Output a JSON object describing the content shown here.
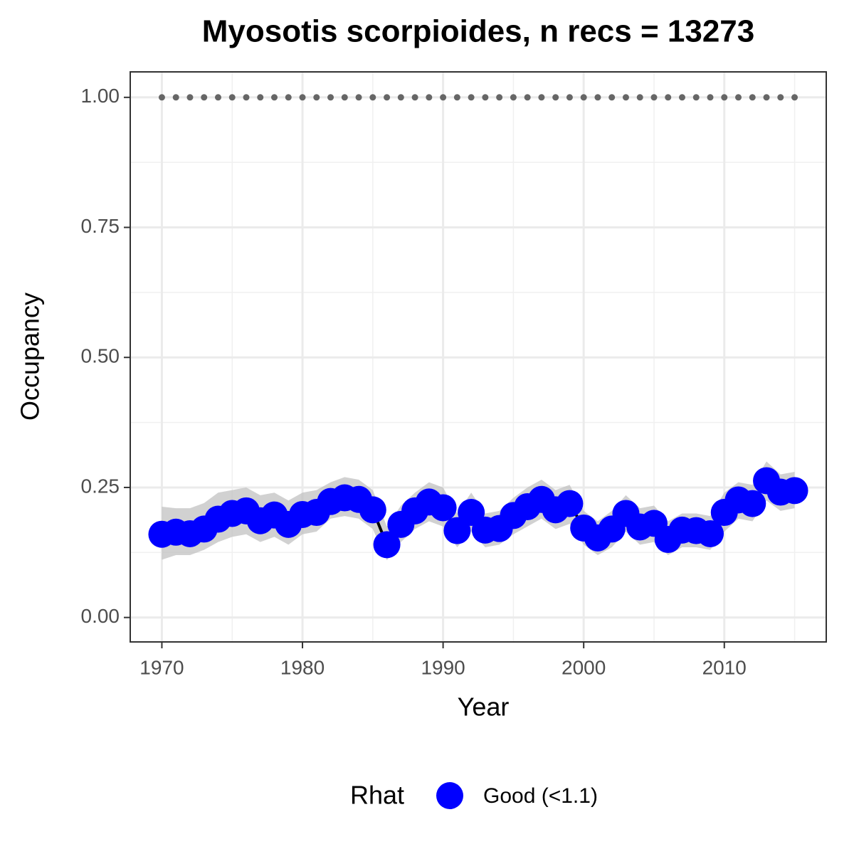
{
  "chart_data": {
    "type": "line",
    "title": "Myosotis scorpioides, n recs = 13273",
    "x_label": "Year",
    "y_label": "Occupancy",
    "x": [
      1970,
      1971,
      1972,
      1973,
      1974,
      1975,
      1976,
      1977,
      1978,
      1979,
      1980,
      1981,
      1982,
      1983,
      1984,
      1985,
      1986,
      1987,
      1988,
      1989,
      1990,
      1991,
      1992,
      1993,
      1994,
      1995,
      1996,
      1997,
      1998,
      1999,
      2000,
      2001,
      2002,
      2003,
      2004,
      2005,
      2006,
      2007,
      2008,
      2009,
      2010,
      2011,
      2012,
      2013,
      2014,
      2015
    ],
    "series": [
      {
        "name": "Good (<1.1)",
        "color": "#0000ff",
        "line_color": "#000000",
        "values": [
          0.16,
          0.164,
          0.161,
          0.17,
          0.189,
          0.2,
          0.205,
          0.186,
          0.197,
          0.179,
          0.198,
          0.202,
          0.223,
          0.23,
          0.227,
          0.207,
          0.14,
          0.179,
          0.205,
          0.222,
          0.211,
          0.167,
          0.202,
          0.168,
          0.171,
          0.196,
          0.213,
          0.227,
          0.207,
          0.219,
          0.172,
          0.153,
          0.17,
          0.2,
          0.174,
          0.181,
          0.15,
          0.168,
          0.167,
          0.161,
          0.202,
          0.226,
          0.219,
          0.263,
          0.241,
          0.244
        ],
        "lower": [
          0.111,
          0.12,
          0.12,
          0.13,
          0.145,
          0.155,
          0.16,
          0.145,
          0.155,
          0.14,
          0.16,
          0.165,
          0.19,
          0.195,
          0.19,
          0.17,
          0.11,
          0.145,
          0.17,
          0.185,
          0.175,
          0.135,
          0.165,
          0.135,
          0.14,
          0.16,
          0.175,
          0.19,
          0.17,
          0.18,
          0.14,
          0.12,
          0.135,
          0.165,
          0.14,
          0.145,
          0.12,
          0.135,
          0.135,
          0.13,
          0.165,
          0.19,
          0.185,
          0.225,
          0.205,
          0.21
        ],
        "upper": [
          0.213,
          0.21,
          0.21,
          0.22,
          0.24,
          0.245,
          0.25,
          0.235,
          0.24,
          0.225,
          0.24,
          0.245,
          0.26,
          0.27,
          0.265,
          0.245,
          0.175,
          0.215,
          0.24,
          0.26,
          0.25,
          0.2,
          0.24,
          0.2,
          0.205,
          0.23,
          0.25,
          0.265,
          0.245,
          0.255,
          0.205,
          0.185,
          0.205,
          0.235,
          0.21,
          0.215,
          0.185,
          0.2,
          0.2,
          0.195,
          0.24,
          0.26,
          0.255,
          0.3,
          0.275,
          0.28
        ]
      },
      {
        "color": "#666666",
        "style": "dotted",
        "values": [
          1,
          1,
          1,
          1,
          1,
          1,
          1,
          1,
          1,
          1,
          1,
          1,
          1,
          1,
          1,
          1,
          1,
          1,
          1,
          1,
          1,
          1,
          1,
          1,
          1,
          1,
          1,
          1,
          1,
          1,
          1,
          1,
          1,
          1,
          1,
          1,
          1,
          1,
          1,
          1,
          1,
          1,
          1,
          1,
          1,
          1
        ]
      }
    ],
    "ribbon_color": "#bdbdbd",
    "legend_title": "Rhat",
    "legend_position": "bottom",
    "xlim": [
      1967.75,
      2017.25
    ],
    "xticks": [
      1970,
      1980,
      1990,
      2000,
      2010
    ],
    "xminor": [
      1975,
      1985,
      1995,
      2005,
      2015
    ],
    "ylim": [
      -0.047,
      1.049
    ],
    "yticks": [
      {
        "value": 0,
        "label": "0.00"
      },
      {
        "value": 0.25,
        "label": "0.25"
      },
      {
        "value": 0.5,
        "label": "0.50"
      },
      {
        "value": 0.75,
        "label": "0.75"
      },
      {
        "value": 1,
        "label": "1.00"
      }
    ],
    "yminor": [
      0.125,
      0.375,
      0.625,
      0.875
    ],
    "grid": true
  }
}
